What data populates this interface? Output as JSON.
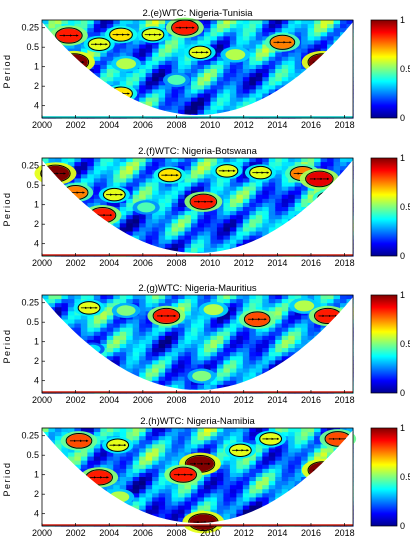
{
  "chart_data": [
    {
      "type": "heatmap",
      "title": "2.(e)WTC: Nigeria-Tunisia",
      "ylabel": "Period",
      "x_ticks": [
        "2000",
        "2002",
        "2004",
        "2006",
        "2008",
        "2010",
        "2012",
        "2014",
        "2016",
        "2018"
      ],
      "xlim": [
        2000,
        2018.5
      ],
      "y_ticks": [
        "0.25",
        "0.5",
        "1",
        "2",
        "4"
      ],
      "y_scale": "log2",
      "ylim": [
        0.19,
        6.2
      ],
      "colorbar": {
        "ticks": [
          "0",
          "0.5",
          "1"
        ],
        "range": [
          0,
          1
        ]
      },
      "baseline_color": "#00c8c8",
      "hotspots": [
        {
          "x": 2001.6,
          "period": 0.33,
          "value": 0.85
        },
        {
          "x": 2001.9,
          "period": 0.85,
          "value": 1.0
        },
        {
          "x": 2003.4,
          "period": 0.45,
          "value": 0.6
        },
        {
          "x": 2004.7,
          "period": 0.32,
          "value": 0.65
        },
        {
          "x": 2005.0,
          "period": 0.9,
          "value": 0.55
        },
        {
          "x": 2006.6,
          "period": 0.32,
          "value": 0.6
        },
        {
          "x": 2008.5,
          "period": 0.25,
          "value": 0.85
        },
        {
          "x": 2009.4,
          "period": 0.6,
          "value": 0.6
        },
        {
          "x": 2011.5,
          "period": 0.65,
          "value": 0.55
        },
        {
          "x": 2014.3,
          "period": 0.42,
          "value": 0.75
        },
        {
          "x": 2016.7,
          "period": 0.85,
          "value": 1.0
        },
        {
          "x": 2004.7,
          "period": 2.6,
          "value": 0.65
        },
        {
          "x": 2008.0,
          "period": 1.6,
          "value": 0.45
        }
      ]
    },
    {
      "type": "heatmap",
      "title": "2.(f)WTC: Nigeria-Botswana",
      "ylabel": "Period",
      "x_ticks": [
        "2000",
        "2002",
        "2004",
        "2006",
        "2008",
        "2010",
        "2012",
        "2014",
        "2016",
        "2018"
      ],
      "xlim": [
        2000,
        2018.5
      ],
      "y_ticks": [
        "0.25",
        "0.5",
        "1",
        "2",
        "4"
      ],
      "y_scale": "log2",
      "ylim": [
        0.19,
        6.2
      ],
      "colorbar": {
        "ticks": [
          "0",
          "0.5",
          "1"
        ],
        "range": [
          0,
          1
        ]
      },
      "baseline_color": "#d21e14",
      "hotspots": [
        {
          "x": 2000.8,
          "period": 0.33,
          "value": 1.0
        },
        {
          "x": 2002.0,
          "period": 0.65,
          "value": 0.75
        },
        {
          "x": 2004.3,
          "period": 0.7,
          "value": 0.6
        },
        {
          "x": 2007.6,
          "period": 0.35,
          "value": 0.65
        },
        {
          "x": 2009.6,
          "period": 0.9,
          "value": 0.85
        },
        {
          "x": 2011.0,
          "period": 0.3,
          "value": 0.6
        },
        {
          "x": 2013.0,
          "period": 0.32,
          "value": 0.6
        },
        {
          "x": 2015.5,
          "period": 0.33,
          "value": 0.75
        },
        {
          "x": 2016.5,
          "period": 0.4,
          "value": 0.9
        },
        {
          "x": 2017.1,
          "period": 0.8,
          "value": 0.7
        },
        {
          "x": 2003.6,
          "period": 1.45,
          "value": 0.85
        },
        {
          "x": 2006.2,
          "period": 1.1,
          "value": 0.45
        }
      ]
    },
    {
      "type": "heatmap",
      "title": "2.(g)WTC: Nigeria-Mauritius",
      "ylabel": "Period",
      "x_ticks": [
        "2000",
        "2002",
        "2004",
        "2006",
        "2008",
        "2010",
        "2012",
        "2014",
        "2016",
        "2018"
      ],
      "xlim": [
        2000,
        2018.5
      ],
      "y_ticks": [
        "0.25",
        "0.5",
        "1",
        "2",
        "4"
      ],
      "y_scale": "log2",
      "ylim": [
        0.19,
        6.2
      ],
      "colorbar": {
        "ticks": [
          "0",
          "0.5",
          "1"
        ],
        "range": [
          0,
          1
        ]
      },
      "baseline_color": "#d21e14",
      "hotspots": [
        {
          "x": 2002.8,
          "period": 0.3,
          "value": 0.6
        },
        {
          "x": 2005.0,
          "period": 0.33,
          "value": 0.5
        },
        {
          "x": 2007.4,
          "period": 0.4,
          "value": 0.85
        },
        {
          "x": 2010.2,
          "period": 0.32,
          "value": 0.55
        },
        {
          "x": 2012.8,
          "period": 0.45,
          "value": 0.8
        },
        {
          "x": 2015.6,
          "period": 0.28,
          "value": 0.55
        },
        {
          "x": 2017.0,
          "period": 0.4,
          "value": 0.85
        },
        {
          "x": 2016.2,
          "period": 1.7,
          "value": 0.45
        },
        {
          "x": 2003.0,
          "period": 1.3,
          "value": 0.35
        },
        {
          "x": 2009.5,
          "period": 3.4,
          "value": 0.5
        }
      ]
    },
    {
      "type": "heatmap",
      "title": "2.(h)WTC: Nigeria-Namibia",
      "ylabel": "Period",
      "x_ticks": [
        "2000",
        "2002",
        "2004",
        "2006",
        "2008",
        "2010",
        "2012",
        "2014",
        "2016",
        "2018"
      ],
      "xlim": [
        2000,
        2018.5
      ],
      "y_ticks": [
        "0.25",
        "0.5",
        "1",
        "2",
        "4"
      ],
      "y_scale": "log2",
      "ylim": [
        0.19,
        6.2
      ],
      "colorbar": {
        "ticks": [
          "0",
          "0.5",
          "1"
        ],
        "range": [
          0,
          1
        ]
      },
      "baseline_color": "#d21e14",
      "hotspots": [
        {
          "x": 2002.2,
          "period": 0.3,
          "value": 0.8
        },
        {
          "x": 2004.5,
          "period": 0.35,
          "value": 0.6
        },
        {
          "x": 2009.4,
          "period": 0.68,
          "value": 1.0
        },
        {
          "x": 2008.4,
          "period": 1.0,
          "value": 0.85
        },
        {
          "x": 2011.8,
          "period": 0.42,
          "value": 0.6
        },
        {
          "x": 2013.6,
          "period": 0.28,
          "value": 0.6
        },
        {
          "x": 2016.7,
          "period": 0.85,
          "value": 1.0
        },
        {
          "x": 2017.6,
          "period": 0.28,
          "value": 0.8
        },
        {
          "x": 2003.4,
          "period": 1.1,
          "value": 0.85
        },
        {
          "x": 2004.6,
          "period": 2.2,
          "value": 0.55
        },
        {
          "x": 2009.6,
          "period": 5.4,
          "value": 1.0
        }
      ]
    }
  ]
}
